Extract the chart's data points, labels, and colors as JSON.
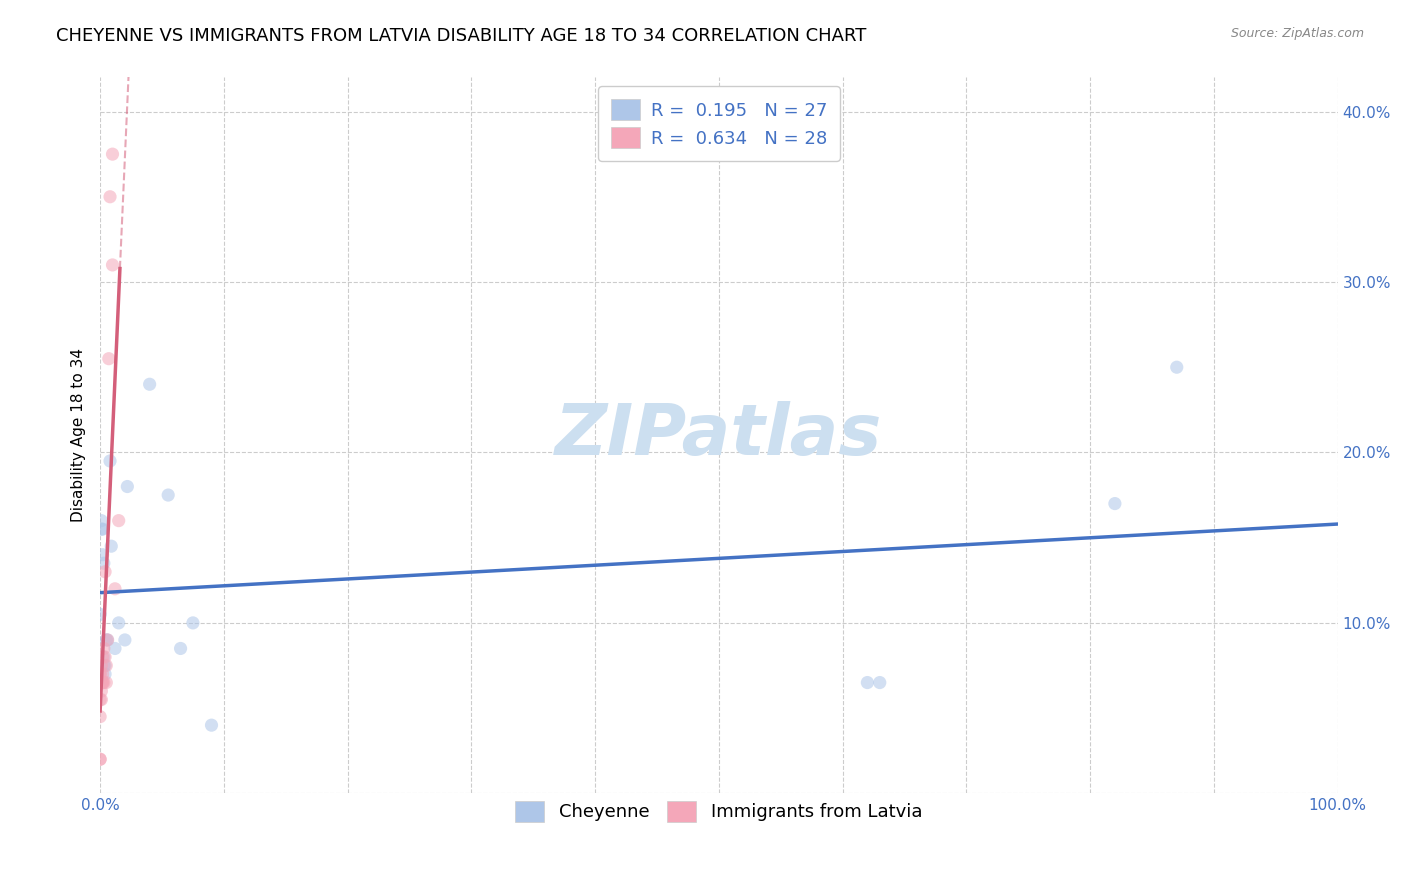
{
  "title": "CHEYENNE VS IMMIGRANTS FROM LATVIA DISABILITY AGE 18 TO 34 CORRELATION CHART",
  "source": "Source: ZipAtlas.com",
  "ylabel": "Disability Age 18 to 34",
  "xlabel": "",
  "watermark": "ZIPatlas",
  "cheyenne_R": 0.195,
  "cheyenne_N": 27,
  "latvia_R": 0.634,
  "latvia_N": 28,
  "cheyenne_color": "#aec6e8",
  "latvia_color": "#f4a7b9",
  "cheyenne_line_color": "#4472c4",
  "latvia_line_color": "#d45f7a",
  "cheyenne_x": [
    0.0,
    0.001,
    0.001,
    0.002,
    0.002,
    0.003,
    0.003,
    0.003,
    0.004,
    0.004,
    0.005,
    0.006,
    0.008,
    0.009,
    0.012,
    0.015,
    0.02,
    0.022,
    0.04,
    0.055,
    0.065,
    0.075,
    0.09,
    0.62,
    0.63,
    0.82,
    0.87
  ],
  "cheyenne_y": [
    0.105,
    0.16,
    0.155,
    0.155,
    0.14,
    0.135,
    0.08,
    0.075,
    0.075,
    0.07,
    0.09,
    0.09,
    0.195,
    0.145,
    0.085,
    0.1,
    0.09,
    0.18,
    0.24,
    0.175,
    0.085,
    0.1,
    0.04,
    0.065,
    0.065,
    0.17,
    0.25
  ],
  "latvia_x": [
    0.0,
    0.0,
    0.0,
    0.0,
    0.0,
    0.0,
    0.0,
    0.001,
    0.001,
    0.001,
    0.001,
    0.002,
    0.002,
    0.002,
    0.002,
    0.003,
    0.003,
    0.004,
    0.004,
    0.005,
    0.005,
    0.006,
    0.007,
    0.008,
    0.01,
    0.01,
    0.012,
    0.015
  ],
  "latvia_y": [
    0.02,
    0.02,
    0.045,
    0.055,
    0.065,
    0.07,
    0.07,
    0.055,
    0.06,
    0.065,
    0.075,
    0.07,
    0.065,
    0.065,
    0.08,
    0.065,
    0.085,
    0.08,
    0.13,
    0.065,
    0.075,
    0.09,
    0.255,
    0.35,
    0.375,
    0.31,
    0.12,
    0.16
  ],
  "xlim": [
    0.0,
    1.0
  ],
  "ylim": [
    0.0,
    0.42
  ],
  "xticks": [
    0.0,
    0.1,
    0.2,
    0.3,
    0.4,
    0.5,
    0.6,
    0.7,
    0.8,
    0.9,
    1.0
  ],
  "yticks": [
    0.0,
    0.1,
    0.2,
    0.3,
    0.4
  ],
  "xtick_labels_bottom": [
    "0.0%",
    "",
    "",
    "",
    "",
    "",
    "",
    "",
    "",
    "",
    "100.0%"
  ],
  "right_ytick_labels": [
    "",
    "10.0%",
    "20.0%",
    "30.0%",
    "40.0%"
  ],
  "grid_color": "#cccccc",
  "background_color": "#ffffff",
  "title_fontsize": 13,
  "axis_fontsize": 11,
  "tick_fontsize": 11,
  "legend_fontsize": 13,
  "watermark_fontsize": 52,
  "watermark_color": "#ccdff0",
  "scatter_size": 90,
  "scatter_alpha": 0.55,
  "line_width": 2.5
}
